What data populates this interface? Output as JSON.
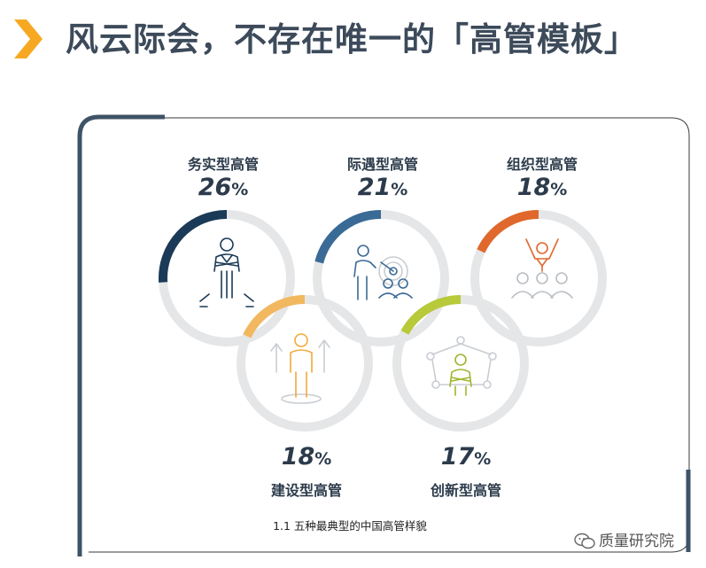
{
  "header": {
    "title": "风云际会，不存在唯一的「高管模板」"
  },
  "chart_data": {
    "type": "donut",
    "title": "",
    "caption": "1.1 五种最典型的中国高管样貌",
    "unit": "%",
    "categories": [
      "务实型高管",
      "际遇型高管",
      "组织型高管",
      "建设型高管",
      "创新型高管"
    ],
    "values": [
      26,
      21,
      18,
      18,
      17
    ],
    "value_labels": [
      "26",
      "21",
      "18",
      "18",
      "17"
    ],
    "colors": [
      "#1b3a57",
      "#3a6a96",
      "#e0682c",
      "#f2b85f",
      "#b8c93a"
    ],
    "track_color": "#e5e6e8",
    "icons": [
      "standing-executive-icon",
      "presenter-target-icon",
      "cheering-team-icon",
      "growth-person-icon",
      "network-person-icon"
    ]
  },
  "watermark": {
    "text": "质量研究院",
    "icon": "wechat-icon"
  }
}
